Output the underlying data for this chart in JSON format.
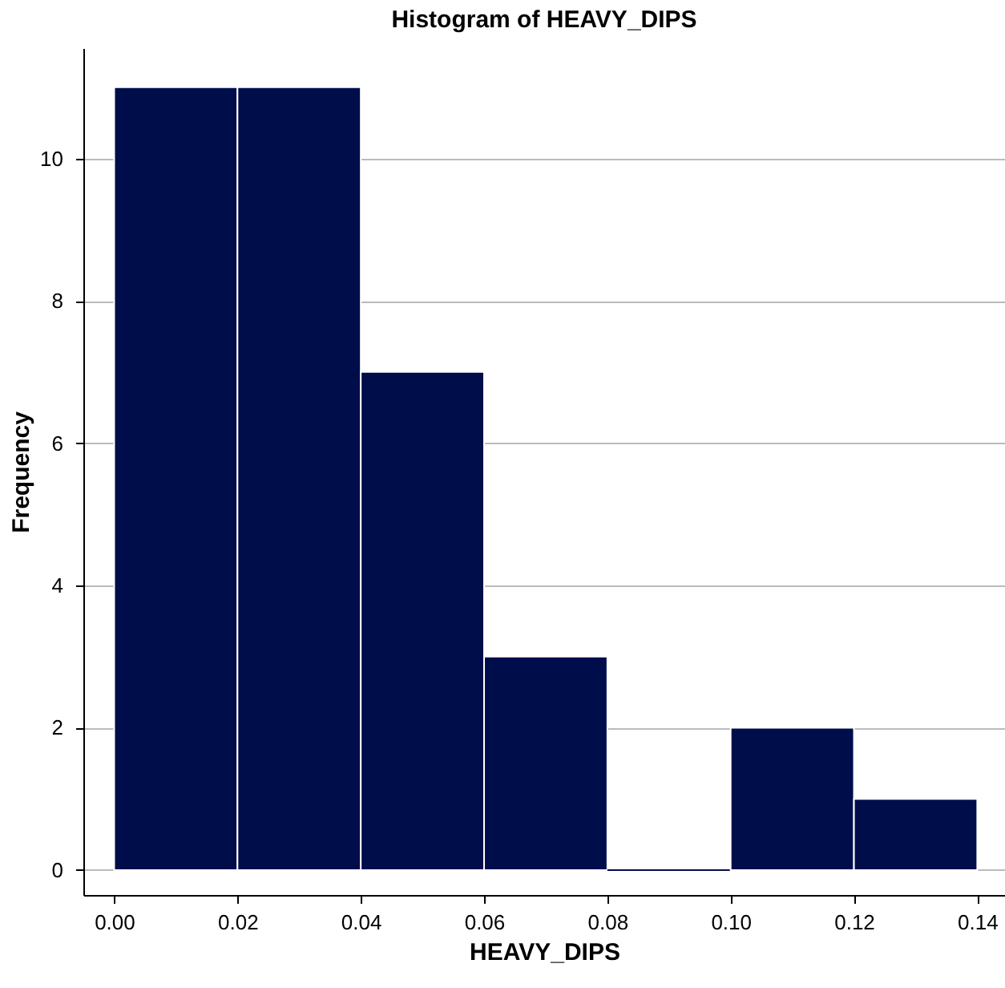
{
  "chart_data": {
    "type": "histogram",
    "title": "Histogram of HEAVY_DIPS",
    "xlabel": "HEAVY_DIPS",
    "ylabel": "Frequency",
    "bins": [
      0,
      0.02,
      0.04,
      0.06,
      0.08,
      0.1,
      0.12,
      0.14
    ],
    "values": [
      11,
      11,
      7,
      3,
      0,
      2,
      1
    ],
    "color": "#000d4b",
    "xlim": [
      -0.005,
      0.1445
    ],
    "xticks": [
      {
        "value": 0,
        "label": "0.00"
      },
      {
        "value": 0.02,
        "label": "0.02"
      },
      {
        "value": 0.04,
        "label": "0.04"
      },
      {
        "value": 0.06,
        "label": "0.06"
      },
      {
        "value": 0.08,
        "label": "0.08"
      },
      {
        "value": 0.1,
        "label": "0.10"
      },
      {
        "value": 0.12,
        "label": "0.12"
      },
      {
        "value": 0.14,
        "label": "0.14"
      }
    ],
    "ylim": [
      -0.35,
      11.55
    ],
    "yticks": [
      0,
      2,
      4,
      6,
      8,
      10
    ],
    "grid": "y"
  }
}
